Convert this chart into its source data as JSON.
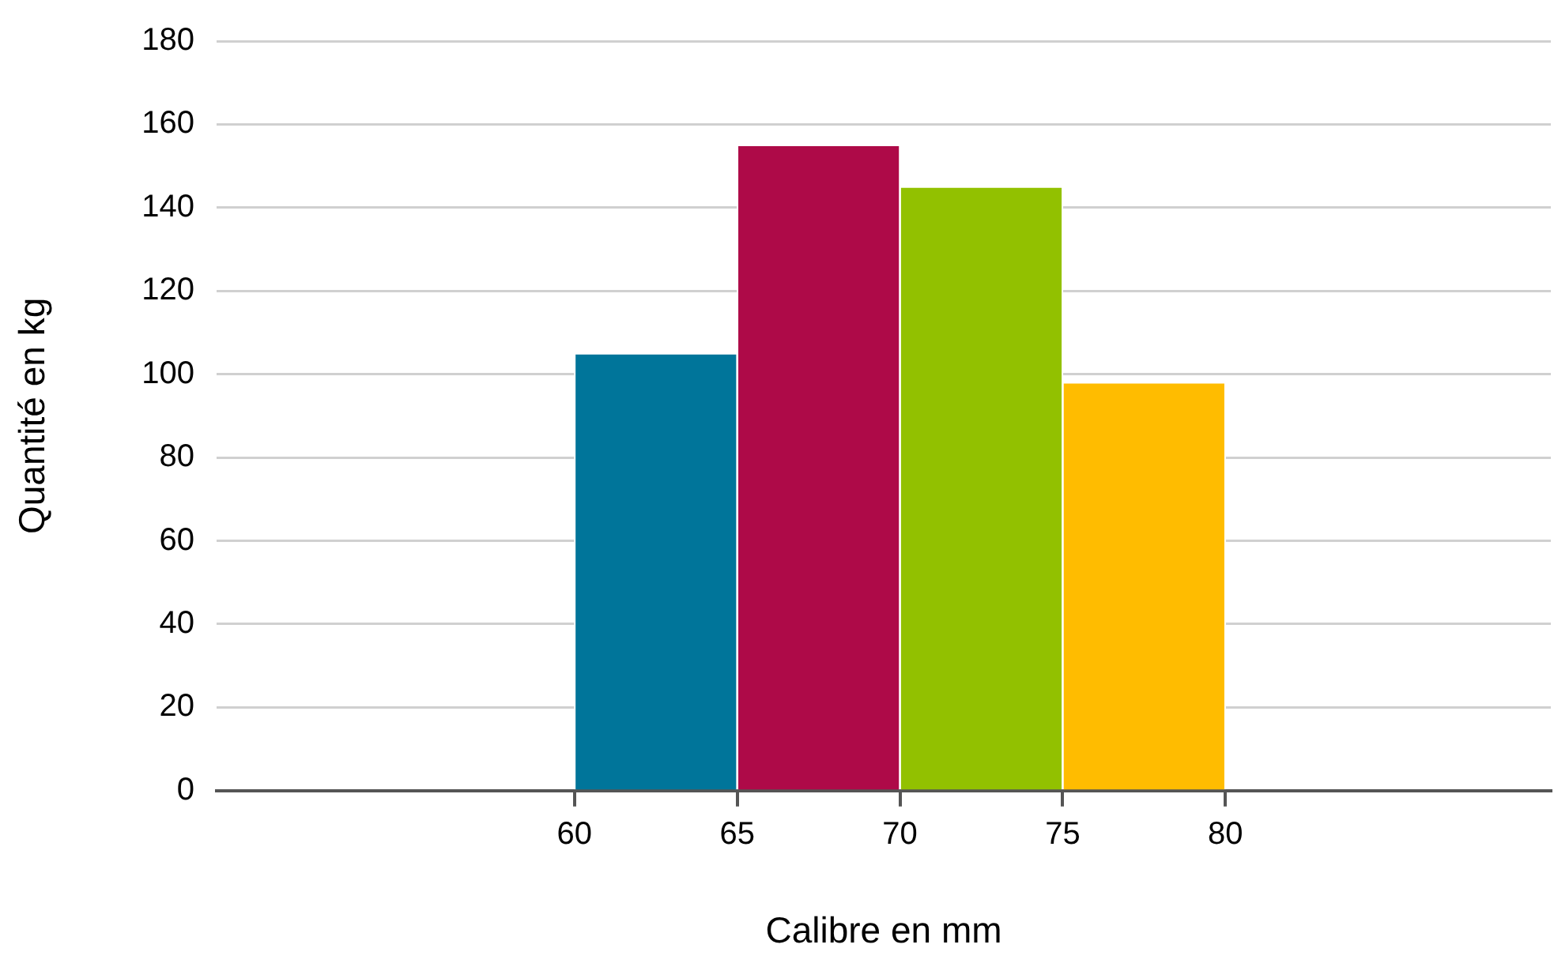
{
  "chart_data": {
    "type": "histogram",
    "xlabel": "Calibre en mm",
    "ylabel": "Quantité en kg",
    "bins": [
      60,
      65,
      70,
      75,
      80
    ],
    "values": [
      105,
      155,
      145,
      98
    ],
    "colors": [
      "#00759a",
      "#ae0a48",
      "#92c100",
      "#ffbc00"
    ],
    "xlim": [
      49,
      90
    ],
    "xticks": [
      60,
      65,
      70,
      75,
      80
    ],
    "ylim": [
      0,
      180
    ],
    "yticks": [
      0,
      20,
      40,
      60,
      80,
      100,
      120,
      140,
      160,
      180
    ],
    "grid": "y",
    "legend": false
  }
}
